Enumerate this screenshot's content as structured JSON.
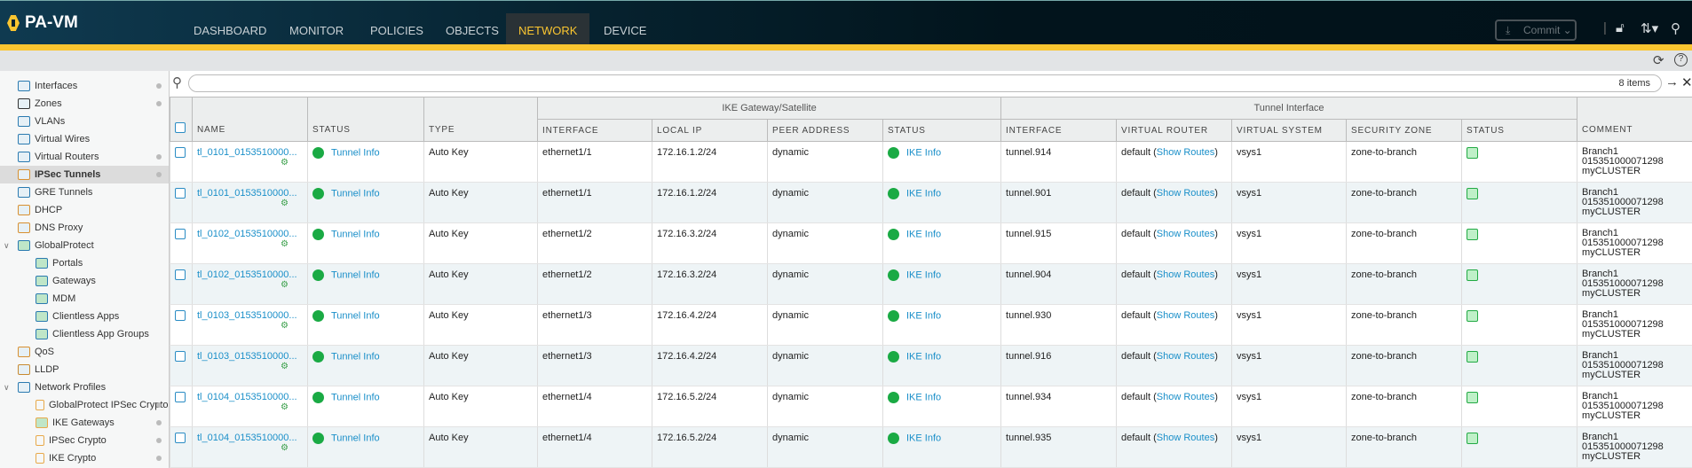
{
  "app": {
    "title": "PA-VM"
  },
  "nav": {
    "tabs": [
      "DASHBOARD",
      "MONITOR",
      "POLICIES",
      "OBJECTS",
      "NETWORK",
      "DEVICE"
    ],
    "active": "NETWORK",
    "commit": "Commit"
  },
  "sidebar": {
    "items": [
      {
        "label": "Interfaces",
        "icon": "interfaces-icon",
        "dot": true
      },
      {
        "label": "Zones",
        "icon": "zones-icon",
        "dot": true
      },
      {
        "label": "VLANs",
        "icon": "vlans-icon",
        "dot": false
      },
      {
        "label": "Virtual Wires",
        "icon": "virtual-wires-icon",
        "dot": false
      },
      {
        "label": "Virtual Routers",
        "icon": "virtual-routers-icon",
        "dot": true
      },
      {
        "label": "IPSec Tunnels",
        "icon": "ipsec-tunnels-icon",
        "dot": true,
        "selected": true
      },
      {
        "label": "GRE Tunnels",
        "icon": "gre-tunnels-icon",
        "dot": false
      },
      {
        "label": "DHCP",
        "icon": "dhcp-icon",
        "dot": false
      },
      {
        "label": "DNS Proxy",
        "icon": "dns-proxy-icon",
        "dot": false
      },
      {
        "label": "GlobalProtect",
        "icon": "globalprotect-icon",
        "dot": false,
        "expanded": true
      },
      {
        "label": "Portals",
        "icon": "portals-icon",
        "dot": false,
        "indent": 1
      },
      {
        "label": "Gateways",
        "icon": "gateways-icon",
        "dot": false,
        "indent": 1
      },
      {
        "label": "MDM",
        "icon": "mdm-icon",
        "dot": false,
        "indent": 1
      },
      {
        "label": "Clientless Apps",
        "icon": "clientless-apps-icon",
        "dot": false,
        "indent": 1
      },
      {
        "label": "Clientless App Groups",
        "icon": "clientless-app-groups-icon",
        "dot": false,
        "indent": 1
      },
      {
        "label": "QoS",
        "icon": "qos-icon",
        "dot": false
      },
      {
        "label": "LLDP",
        "icon": "lldp-icon",
        "dot": false
      },
      {
        "label": "Network Profiles",
        "icon": "network-profiles-icon",
        "dot": false,
        "expanded": true
      },
      {
        "label": "GlobalProtect IPSec Crypto",
        "icon": "lock-icon",
        "dot": true,
        "indent": 1
      },
      {
        "label": "IKE Gateways",
        "icon": "ike-gateways-icon",
        "dot": true,
        "indent": 1
      },
      {
        "label": "IPSec Crypto",
        "icon": "lock-icon",
        "dot": true,
        "indent": 1
      },
      {
        "label": "IKE Crypto",
        "icon": "lock-icon",
        "dot": true,
        "indent": 1
      }
    ]
  },
  "search": {
    "value": "",
    "count": "8 items"
  },
  "table": {
    "groups": {
      "ike": "IKE Gateway/Satellite",
      "tunnel": "Tunnel Interface"
    },
    "headers": [
      "NAME",
      "STATUS",
      "TYPE",
      "INTERFACE",
      "LOCAL IP",
      "PEER ADDRESS",
      "STATUS",
      "INTERFACE",
      "VIRTUAL ROUTER",
      "VIRTUAL SYSTEM",
      "SECURITY ZONE",
      "STATUS",
      "COMMENT"
    ],
    "rows": [
      {
        "name": "tl_0101_0153510000...",
        "status": "Tunnel Info",
        "type": "Auto Key",
        "iface": "ethernet1/1",
        "local_ip": "172.16.1.2/24",
        "peer": "dynamic",
        "ike_status": "IKE Info",
        "tunnel": "tunnel.914",
        "vr": "default",
        "vr_link": "Show Routes",
        "vsys": "vsys1",
        "zone": "zone-to-branch",
        "comment": [
          "Branch1",
          "015351000071298",
          "myCLUSTER"
        ]
      },
      {
        "name": "tl_0101_0153510000...",
        "status": "Tunnel Info",
        "type": "Auto Key",
        "iface": "ethernet1/1",
        "local_ip": "172.16.1.2/24",
        "peer": "dynamic",
        "ike_status": "IKE Info",
        "tunnel": "tunnel.901",
        "vr": "default",
        "vr_link": "Show Routes",
        "vsys": "vsys1",
        "zone": "zone-to-branch",
        "comment": [
          "Branch1",
          "015351000071298",
          "myCLUSTER"
        ]
      },
      {
        "name": "tl_0102_0153510000...",
        "status": "Tunnel Info",
        "type": "Auto Key",
        "iface": "ethernet1/2",
        "local_ip": "172.16.3.2/24",
        "peer": "dynamic",
        "ike_status": "IKE Info",
        "tunnel": "tunnel.915",
        "vr": "default",
        "vr_link": "Show Routes",
        "vsys": "vsys1",
        "zone": "zone-to-branch",
        "comment": [
          "Branch1",
          "015351000071298",
          "myCLUSTER"
        ]
      },
      {
        "name": "tl_0102_0153510000...",
        "status": "Tunnel Info",
        "type": "Auto Key",
        "iface": "ethernet1/2",
        "local_ip": "172.16.3.2/24",
        "peer": "dynamic",
        "ike_status": "IKE Info",
        "tunnel": "tunnel.904",
        "vr": "default",
        "vr_link": "Show Routes",
        "vsys": "vsys1",
        "zone": "zone-to-branch",
        "comment": [
          "Branch1",
          "015351000071298",
          "myCLUSTER"
        ]
      },
      {
        "name": "tl_0103_0153510000...",
        "status": "Tunnel Info",
        "type": "Auto Key",
        "iface": "ethernet1/3",
        "local_ip": "172.16.4.2/24",
        "peer": "dynamic",
        "ike_status": "IKE Info",
        "tunnel": "tunnel.930",
        "vr": "default",
        "vr_link": "Show Routes",
        "vsys": "vsys1",
        "zone": "zone-to-branch",
        "comment": [
          "Branch1",
          "015351000071298",
          "myCLUSTER"
        ]
      },
      {
        "name": "tl_0103_0153510000...",
        "status": "Tunnel Info",
        "type": "Auto Key",
        "iface": "ethernet1/3",
        "local_ip": "172.16.4.2/24",
        "peer": "dynamic",
        "ike_status": "IKE Info",
        "tunnel": "tunnel.916",
        "vr": "default",
        "vr_link": "Show Routes",
        "vsys": "vsys1",
        "zone": "zone-to-branch",
        "comment": [
          "Branch1",
          "015351000071298",
          "myCLUSTER"
        ]
      },
      {
        "name": "tl_0104_0153510000...",
        "status": "Tunnel Info",
        "type": "Auto Key",
        "iface": "ethernet1/4",
        "local_ip": "172.16.5.2/24",
        "peer": "dynamic",
        "ike_status": "IKE Info",
        "tunnel": "tunnel.934",
        "vr": "default",
        "vr_link": "Show Routes",
        "vsys": "vsys1",
        "zone": "zone-to-branch",
        "comment": [
          "Branch1",
          "015351000071298",
          "myCLUSTER"
        ]
      },
      {
        "name": "tl_0104_0153510000...",
        "status": "Tunnel Info",
        "type": "Auto Key",
        "iface": "ethernet1/4",
        "local_ip": "172.16.5.2/24",
        "peer": "dynamic",
        "ike_status": "IKE Info",
        "tunnel": "tunnel.935",
        "vr": "default",
        "vr_link": "Show Routes",
        "vsys": "vsys1",
        "zone": "zone-to-branch",
        "comment": [
          "Branch1",
          "015351000071298",
          "myCLUSTER"
        ]
      }
    ]
  },
  "colors": {
    "accent": "#fac530",
    "link": "#1a8fc9",
    "status_ok": "#1aaa44"
  }
}
